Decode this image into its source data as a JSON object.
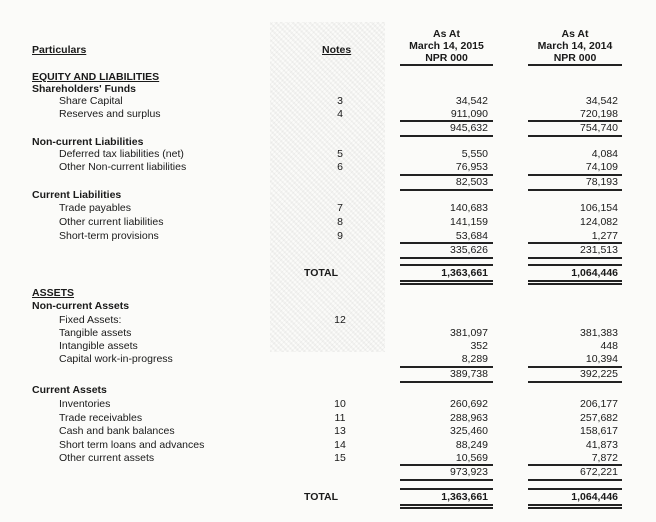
{
  "header": {
    "particulars": "Particulars",
    "notes": "Notes",
    "col1": {
      "line1": "As At",
      "line2": "March 14, 2015",
      "line3": "NPR 000"
    },
    "col2": {
      "line1": "As At",
      "line2": "March 14, 2014",
      "line3": "NPR 000"
    }
  },
  "rows": [
    {
      "kind": "section",
      "label": "EQUITY AND LIABILITIES"
    },
    {
      "kind": "group",
      "label": "Shareholders' Funds"
    },
    {
      "kind": "item",
      "label": "Share Capital",
      "note": "3",
      "v1": "34,542",
      "v2": "34,542"
    },
    {
      "kind": "item",
      "label": "Reserves and surplus",
      "note": "4",
      "v1": "911,090",
      "v2": "720,198"
    },
    {
      "kind": "subtotal",
      "v1": "945,632",
      "v2": "754,740"
    },
    {
      "kind": "group",
      "label": "Non-current Liabilities"
    },
    {
      "kind": "item",
      "label": "Deferred tax liabilities (net)",
      "note": "5",
      "v1": "5,550",
      "v2": "4,084"
    },
    {
      "kind": "item",
      "label": "Other Non-current liabilities",
      "note": "6",
      "v1": "76,953",
      "v2": "74,109"
    },
    {
      "kind": "subtotal",
      "v1": "82,503",
      "v2": "78,193"
    },
    {
      "kind": "group",
      "label": "Current Liabilities"
    },
    {
      "kind": "item",
      "label": "Trade payables",
      "note": "7",
      "v1": "140,683",
      "v2": "106,154"
    },
    {
      "kind": "item",
      "label": "Other current liabilities",
      "note": "8",
      "v1": "141,159",
      "v2": "124,082"
    },
    {
      "kind": "item",
      "label": "Short-term provisions",
      "note": "9",
      "v1": "53,684",
      "v2": "1,277"
    },
    {
      "kind": "subtotal",
      "v1": "335,626",
      "v2": "231,513"
    },
    {
      "kind": "total",
      "label": "TOTAL",
      "v1": "1,363,661",
      "v2": "1,064,446"
    },
    {
      "kind": "section",
      "label": "ASSETS"
    },
    {
      "kind": "group",
      "label": "Non-current Assets"
    },
    {
      "kind": "item",
      "label": "Fixed Assets:",
      "note": "12",
      "v1": "",
      "v2": ""
    },
    {
      "kind": "item",
      "label": "Tangible assets",
      "note": "",
      "v1": "381,097",
      "v2": "381,383"
    },
    {
      "kind": "item",
      "label": "Intangible assets",
      "note": "",
      "v1": "352",
      "v2": "448"
    },
    {
      "kind": "item",
      "label": "Capital work-in-progress",
      "note": "",
      "v1": "8,289",
      "v2": "10,394"
    },
    {
      "kind": "subtotal",
      "v1": "389,738",
      "v2": "392,225"
    },
    {
      "kind": "group",
      "label": "Current Assets"
    },
    {
      "kind": "item",
      "label": "Inventories",
      "note": "10",
      "v1": "260,692",
      "v2": "206,177"
    },
    {
      "kind": "item",
      "label": "Trade receivables",
      "note": "11",
      "v1": "288,963",
      "v2": "257,682"
    },
    {
      "kind": "item",
      "label": "Cash and bank balances",
      "note": "13",
      "v1": "325,460",
      "v2": "158,617"
    },
    {
      "kind": "item",
      "label": "Short term loans and advances",
      "note": "14",
      "v1": "88,249",
      "v2": "41,873"
    },
    {
      "kind": "item",
      "label": "Other current assets",
      "note": "15",
      "v1": "10,569",
      "v2": "7,872"
    },
    {
      "kind": "subtotal",
      "v1": "973,923",
      "v2": "672,221"
    },
    {
      "kind": "total",
      "label": "TOTAL",
      "v1": "1,363,661",
      "v2": "1,064,446"
    }
  ]
}
